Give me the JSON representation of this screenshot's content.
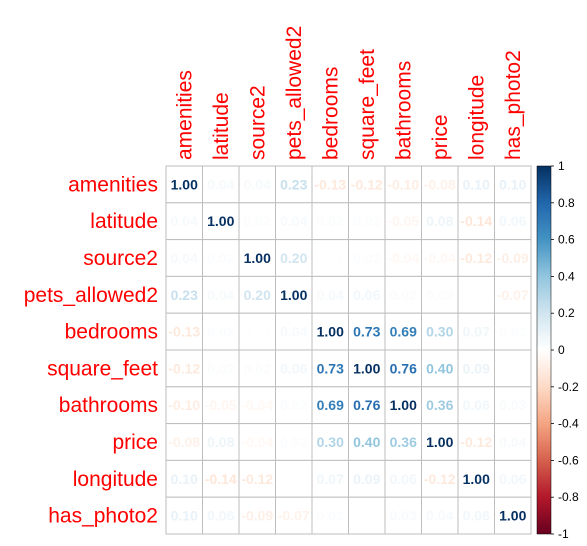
{
  "chart_data": {
    "type": "heatmap",
    "title": "",
    "labels": [
      "amenities",
      "latitude",
      "source2",
      "pets_allowed2",
      "bedrooms",
      "square_feet",
      "bathrooms",
      "price",
      "longitude",
      "has_photo2"
    ],
    "matrix": [
      [
        1.0,
        0.04,
        0.04,
        0.23,
        -0.13,
        -0.12,
        -0.1,
        -0.08,
        0.1,
        0.1
      ],
      [
        0.04,
        1.0,
        0.02,
        0.04,
        0.02,
        0.02,
        -0.05,
        0.08,
        -0.14,
        0.06
      ],
      [
        0.04,
        0.02,
        1.0,
        0.2,
        0.01,
        0.02,
        -0.04,
        -0.04,
        -0.12,
        -0.09
      ],
      [
        0.23,
        0.04,
        0.2,
        1.0,
        0.04,
        0.06,
        0.02,
        0.02,
        0.01,
        -0.07
      ],
      [
        -0.13,
        0.02,
        0.01,
        0.04,
        1.0,
        0.73,
        0.69,
        0.3,
        0.07,
        0.02
      ],
      [
        -0.12,
        0.02,
        0.02,
        0.06,
        0.73,
        1.0,
        0.76,
        0.4,
        0.09,
        0.0
      ],
      [
        -0.1,
        -0.05,
        -0.04,
        0.02,
        0.69,
        0.76,
        1.0,
        0.36,
        0.06,
        0.03
      ],
      [
        -0.08,
        0.08,
        -0.04,
        0.02,
        0.3,
        0.4,
        0.36,
        1.0,
        -0.12,
        0.04
      ],
      [
        0.1,
        -0.14,
        -0.12,
        0.01,
        0.07,
        0.09,
        0.06,
        -0.12,
        1.0,
        0.06
      ],
      [
        0.1,
        0.06,
        -0.09,
        -0.07,
        0.02,
        0.0,
        0.03,
        0.04,
        0.06,
        1.0
      ]
    ],
    "colorbar": {
      "range": [
        -1,
        1
      ],
      "ticks": [
        "1",
        "0.8",
        "0.6",
        "0.4",
        "0.2",
        "0",
        "-0.2",
        "-0.4",
        "-0.6",
        "-0.8",
        "-1"
      ],
      "stops": [
        "#67001f",
        "#b2182b",
        "#d6604d",
        "#f4a582",
        "#fddbc7",
        "#ffffff",
        "#d1e5f0",
        "#92c5de",
        "#4393c3",
        "#2166ac",
        "#053061"
      ]
    },
    "label_color": "#ff0000",
    "grid": true
  }
}
